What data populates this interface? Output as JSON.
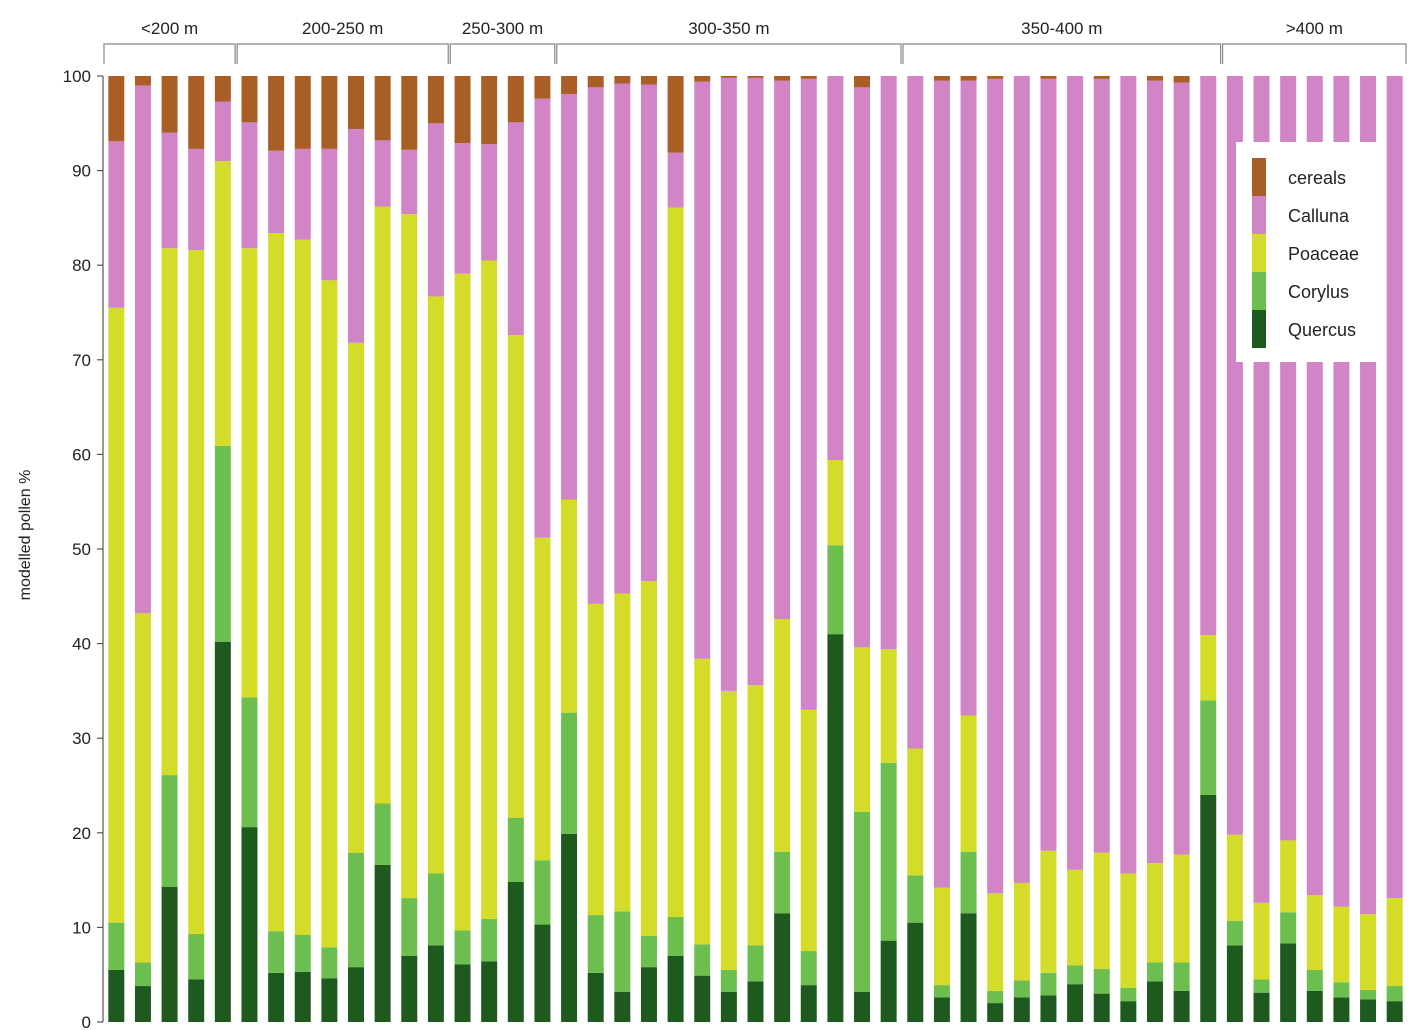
{
  "chart_data": {
    "type": "bar",
    "stacked": true,
    "ylabel": "modelled pollen %",
    "ylim": [
      0,
      100
    ],
    "yticks": [
      0,
      10,
      20,
      30,
      40,
      50,
      60,
      70,
      80,
      90,
      100
    ],
    "grid": false,
    "legend_position": "top-right",
    "groups": [
      {
        "label": "<200 m",
        "count": 5
      },
      {
        "label": "200-250 m",
        "count": 8
      },
      {
        "label": "250-300 m",
        "count": 4
      },
      {
        "label": "300-350 m",
        "count": 13
      },
      {
        "label": "350-400 m",
        "count": 12
      },
      {
        "label": ">400 m",
        "count": 7
      }
    ],
    "series": [
      {
        "name": "Quercus",
        "color": "#1e5a1e",
        "values": [
          5.5,
          3.8,
          14.3,
          4.5,
          40.2,
          20.6,
          5.2,
          5.3,
          4.6,
          5.8,
          16.6,
          7.0,
          8.1,
          6.1,
          6.4,
          14.8,
          10.3,
          19.9,
          5.2,
          3.2,
          5.8,
          7.0,
          4.9,
          3.2,
          4.3,
          11.5,
          3.9,
          41.0,
          3.2,
          8.6,
          10.5,
          2.6,
          11.5,
          2.0,
          2.6,
          2.8,
          4.0,
          3.0,
          2.2,
          4.3,
          3.3,
          24.0,
          8.1,
          3.1,
          8.3,
          3.3,
          2.6,
          2.4,
          2.2
        ]
      },
      {
        "name": "Corylus",
        "color": "#6cbf4e",
        "values": [
          5.0,
          2.5,
          11.8,
          4.8,
          20.7,
          13.7,
          4.4,
          3.9,
          3.3,
          12.1,
          6.5,
          6.1,
          7.6,
          3.6,
          4.5,
          6.8,
          6.8,
          12.8,
          6.1,
          8.5,
          3.3,
          4.1,
          3.3,
          2.3,
          3.8,
          6.5,
          3.6,
          9.4,
          19.0,
          18.8,
          5.0,
          1.3,
          6.5,
          1.3,
          1.8,
          2.4,
          2.0,
          2.6,
          1.4,
          2.0,
          3.0,
          10.0,
          2.6,
          1.4,
          3.3,
          2.2,
          1.6,
          1.0,
          1.6
        ]
      },
      {
        "name": "Poaceae",
        "color": "#d4dc2a",
        "values": [
          65.0,
          36.9,
          55.7,
          72.3,
          30.1,
          47.5,
          73.8,
          73.5,
          70.5,
          53.9,
          63.1,
          72.3,
          61.0,
          69.4,
          69.6,
          51.0,
          34.1,
          22.5,
          32.9,
          33.6,
          37.5,
          75.0,
          30.2,
          29.5,
          27.5,
          24.6,
          25.5,
          9.0,
          17.4,
          12.0,
          13.4,
          10.3,
          14.4,
          10.3,
          10.3,
          12.9,
          10.1,
          12.3,
          12.1,
          10.5,
          11.4,
          6.9,
          9.1,
          8.1,
          7.6,
          7.9,
          8.0,
          8.0,
          9.3
        ]
      },
      {
        "name": "Calluna",
        "color": "#d184c6",
        "values": [
          17.6,
          55.8,
          12.2,
          10.7,
          6.3,
          13.3,
          8.7,
          9.6,
          13.9,
          22.6,
          7.0,
          6.8,
          18.3,
          13.8,
          12.3,
          22.5,
          46.4,
          42.9,
          54.6,
          53.9,
          52.5,
          5.8,
          61.0,
          64.8,
          64.2,
          56.9,
          66.7,
          40.6,
          59.2,
          60.6,
          71.1,
          85.3,
          67.1,
          86.1,
          85.3,
          81.6,
          83.9,
          81.8,
          84.3,
          82.7,
          81.6,
          59.1,
          80.2,
          87.4,
          80.8,
          86.6,
          87.8,
          88.6,
          86.9
        ]
      },
      {
        "name": "cereals",
        "color": "#a85e24",
        "values": [
          6.9,
          1.0,
          6.0,
          7.7,
          2.7,
          4.9,
          7.9,
          7.7,
          7.7,
          5.6,
          6.8,
          7.8,
          5.0,
          7.1,
          7.2,
          4.9,
          2.4,
          1.9,
          1.2,
          0.8,
          0.9,
          8.1,
          0.6,
          0.2,
          0.2,
          0.5,
          0.3,
          0.0,
          1.2,
          0.0,
          0.0,
          0.5,
          0.5,
          0.3,
          0.0,
          0.3,
          0.0,
          0.3,
          0.0,
          0.5,
          0.7,
          0.0,
          0.0,
          0.0,
          0.0,
          0.0,
          0.0,
          0.0,
          0.0
        ]
      }
    ],
    "legend": [
      "cereals",
      "Calluna",
      "Poaceae",
      "Corylus",
      "Quercus"
    ]
  }
}
